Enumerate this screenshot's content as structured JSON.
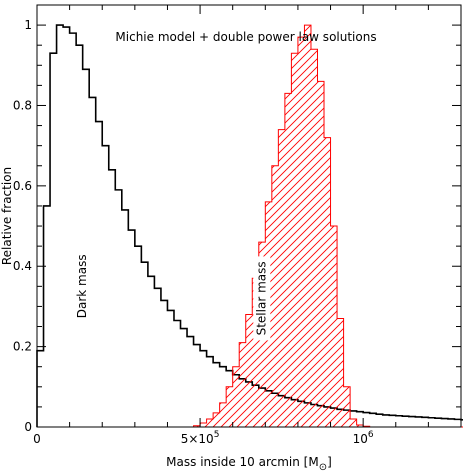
{
  "chart_data": {
    "type": "histogram",
    "title": "Michie model + double power law solutions",
    "xlabel": "Mass inside 10 arcmin [M",
    "xlabel_symbol": "⊙",
    "xlabel_close": "]",
    "ylabel": "Relative fraction",
    "xlim": [
      0,
      1300000
    ],
    "ylim": [
      0,
      1.05
    ],
    "x_ticks": [
      {
        "value": 0,
        "label": "0"
      },
      {
        "value": 500000,
        "label": "5×10",
        "sup": "5"
      },
      {
        "value": 1000000,
        "label": "10",
        "sup": "6"
      }
    ],
    "y_ticks": [
      {
        "value": 0,
        "label": "0"
      },
      {
        "value": 0.2,
        "label": "0.2"
      },
      {
        "value": 0.4,
        "label": "0.4"
      },
      {
        "value": 0.6,
        "label": "0.6"
      },
      {
        "value": 0.8,
        "label": "0.8"
      },
      {
        "value": 1,
        "label": "1"
      }
    ],
    "bin_start": 0,
    "bin_width": 20000,
    "series": [
      {
        "name": "Dark mass",
        "style": "step",
        "color": "#000000",
        "values": [
          0.19,
          0.55,
          0.93,
          1.0,
          0.995,
          0.98,
          0.95,
          0.89,
          0.82,
          0.76,
          0.7,
          0.64,
          0.59,
          0.54,
          0.49,
          0.45,
          0.41,
          0.375,
          0.345,
          0.315,
          0.29,
          0.265,
          0.245,
          0.225,
          0.205,
          0.19,
          0.175,
          0.16,
          0.15,
          0.14,
          0.13,
          0.12,
          0.112,
          0.104,
          0.097,
          0.09,
          0.084,
          0.078,
          0.073,
          0.068,
          0.064,
          0.06,
          0.056,
          0.053,
          0.05,
          0.047,
          0.044,
          0.042,
          0.04,
          0.038,
          0.036,
          0.034,
          0.032,
          0.03,
          0.029,
          0.028,
          0.027,
          0.026,
          0.025,
          0.024,
          0.023,
          0.022,
          0.021,
          0.02,
          0.019,
          0.018
        ]
      },
      {
        "name": "Stellar mass",
        "style": "hatched-step",
        "color": "#ff0000",
        "values": [
          0,
          0,
          0,
          0,
          0,
          0,
          0,
          0,
          0,
          0,
          0,
          0,
          0,
          0,
          0,
          0,
          0,
          0,
          0,
          0,
          0,
          0,
          0,
          0,
          0.003,
          0.01,
          0.02,
          0.035,
          0.06,
          0.1,
          0.15,
          0.21,
          0.28,
          0.37,
          0.46,
          0.56,
          0.65,
          0.74,
          0.83,
          0.93,
          0.97,
          1.0,
          0.94,
          0.86,
          0.72,
          0.5,
          0.27,
          0.1,
          0.02,
          0.005,
          0.002,
          0,
          0,
          0,
          0,
          0,
          0,
          0,
          0,
          0,
          0,
          0,
          0,
          0,
          0,
          0
        ]
      }
    ],
    "annotations": [
      {
        "text": "Dark mass",
        "x": 150000,
        "y": 0.35,
        "rotate": -90
      },
      {
        "text": "Stellar mass",
        "x": 700000,
        "y": 0.32,
        "rotate": -90,
        "boxed": true
      }
    ]
  }
}
